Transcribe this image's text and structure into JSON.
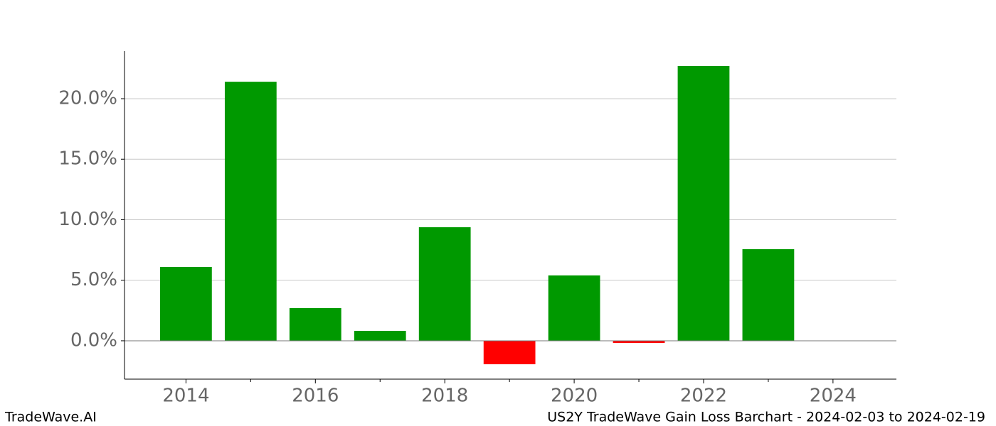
{
  "chart_data": {
    "type": "bar",
    "title": "US2Y TradeWave Gain Loss Barchart - 2024-02-03 to 2024-02-19",
    "footer": "TradeWave.AI",
    "x": [
      2014,
      2015,
      2016,
      2017,
      2018,
      2019,
      2020,
      2021,
      2022,
      2023
    ],
    "values": [
      6.1,
      21.4,
      2.7,
      0.82,
      9.38,
      -1.94,
      5.4,
      -0.18,
      22.7,
      7.57
    ],
    "color_positive": "#009900",
    "color_negative": "#ff0000",
    "xlim": [
      2013.05,
      2024.98
    ],
    "xticks": [
      2014,
      2016,
      2018,
      2020,
      2022,
      2024
    ],
    "xticks_minor": [
      2015,
      2017,
      2019,
      2021,
      2023
    ],
    "ylim": [
      -3.17,
      23.93
    ],
    "yticks": [
      {
        "value": 0,
        "label": "0.0%"
      },
      {
        "value": 5,
        "label": "5.0%"
      },
      {
        "value": 10,
        "label": "10.0%"
      },
      {
        "value": 15,
        "label": "15.0%"
      },
      {
        "value": 20,
        "label": "20.0%"
      }
    ],
    "grid": true
  }
}
